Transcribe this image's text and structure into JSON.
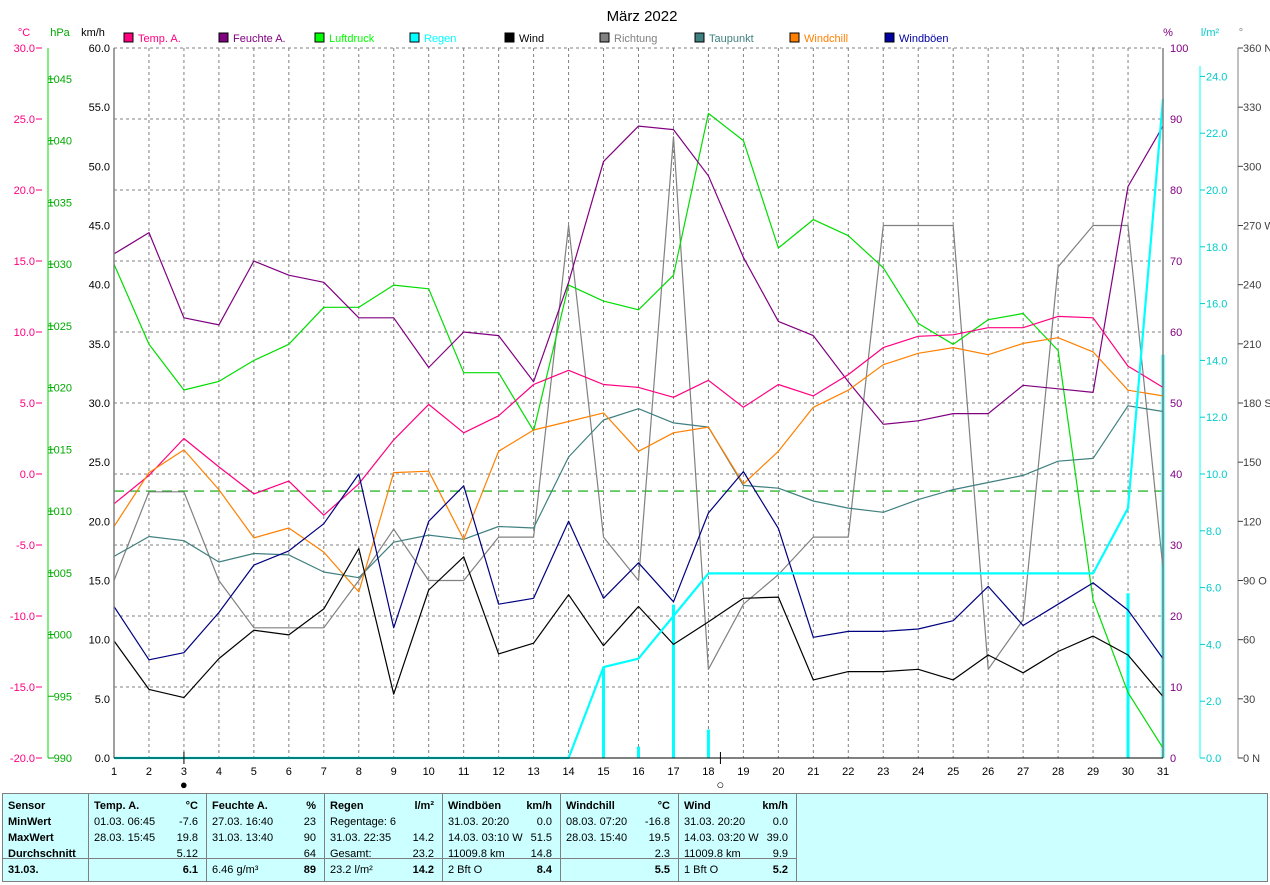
{
  "title": "März 2022",
  "colors": {
    "temp": "#ff0080",
    "humidity": "#800080",
    "pressure": "#00dd00",
    "rain": "#00ffff",
    "wind": "#000000",
    "direction": "#808080",
    "dewpoint": "#408080",
    "windchill": "#ff8000",
    "gusts": "#000080",
    "threshold": "#00aa00"
  },
  "legend": [
    {
      "label": "Temp. A.",
      "color": "#ff0080"
    },
    {
      "label": "Feuchte A.",
      "color": "#800080"
    },
    {
      "label": "Luftdruck",
      "color": "#00ff00"
    },
    {
      "label": "Regen",
      "color": "#00ffff"
    },
    {
      "label": "Wind",
      "color": "#000000"
    },
    {
      "label": "Richtung",
      "color": "#808080"
    },
    {
      "label": "Taupunkt",
      "color": "#408080"
    },
    {
      "label": "Windchill",
      "color": "#ff8000"
    },
    {
      "label": "Windböen",
      "color": "#0000a0"
    }
  ],
  "chart_data": {
    "type": "line",
    "title": "März 2022",
    "x": [
      1,
      2,
      3,
      4,
      5,
      6,
      7,
      8,
      9,
      10,
      11,
      12,
      13,
      14,
      15,
      16,
      17,
      18,
      19,
      20,
      21,
      22,
      23,
      24,
      25,
      26,
      27,
      28,
      29,
      30,
      31
    ],
    "xlim": [
      1,
      31
    ],
    "grid": true,
    "threshold_line": {
      "axis": "temp",
      "value": -1.2,
      "style": "dashed"
    },
    "axes": {
      "temp": {
        "unit": "°C",
        "range": [
          -20,
          30
        ],
        "ticks": [
          "30.0",
          "25.0",
          "20.0",
          "15.0",
          "10.0",
          "5.0",
          "0.0",
          "-5.0",
          "-10.0",
          "-15.0",
          "-20.0"
        ]
      },
      "pressure": {
        "unit": "hPa",
        "range": [
          990,
          1047.5
        ],
        "ticks": [
          "1045",
          "1040",
          "1035",
          "1030",
          "1025",
          "1020",
          "1015",
          "1010",
          "1005",
          "1000",
          "995",
          "990"
        ]
      },
      "wind": {
        "unit": "km/h",
        "range": [
          0,
          60
        ],
        "ticks": [
          "60.0",
          "55.0",
          "50.0",
          "45.0",
          "40.0",
          "35.0",
          "30.0",
          "25.0",
          "20.0",
          "15.0",
          "10.0",
          "5.0",
          "0.0"
        ]
      },
      "humidity": {
        "unit": "%",
        "range": [
          0,
          100
        ],
        "ticks": [
          "100",
          "90",
          "80",
          "70",
          "60",
          "50",
          "40",
          "30",
          "20",
          "10",
          "0"
        ]
      },
      "rain": {
        "unit": "l/m²",
        "range": [
          0,
          25
        ],
        "ticks": [
          "24.0",
          "22.0",
          "20.0",
          "18.0",
          "16.0",
          "14.0",
          "12.0",
          "10.0",
          "8.0",
          "6.0",
          "4.0",
          "2.0",
          "0.0"
        ]
      },
      "direction": {
        "unit": "°",
        "range": [
          0,
          360
        ],
        "ticks": [
          "360 N",
          "330",
          "300",
          "270 W",
          "240",
          "210",
          "180 S",
          "150",
          "120",
          "90 O",
          "60",
          "30",
          "0 N"
        ]
      }
    },
    "series": [
      {
        "name": "Temp. A.",
        "key": "temp",
        "axis": "temp",
        "values": [
          -2.1,
          -0.1,
          2.5,
          0.5,
          -1.4,
          -0.5,
          -2.9,
          -0.7,
          2.4,
          4.9,
          2.9,
          4.1,
          6.3,
          7.3,
          6.3,
          6.1,
          5.4,
          6.6,
          4.7,
          6.3,
          5.5,
          7.0,
          8.9,
          9.7,
          9.8,
          10.3,
          10.3,
          11.1,
          11.0,
          7.6,
          6.1
        ]
      },
      {
        "name": "Feuchte A.",
        "key": "humidity",
        "axis": "humidity",
        "values": [
          71,
          74,
          62,
          61,
          70,
          68,
          67,
          62,
          62,
          55,
          60,
          59.5,
          53,
          67,
          84,
          89,
          88.5,
          82,
          70.5,
          61.5,
          59.5,
          53,
          47,
          47.5,
          48.5,
          48.5,
          52.5,
          52,
          51.5,
          80.5,
          89
        ]
      },
      {
        "name": "Luftdruck",
        "key": "pressure",
        "axis": "pressure",
        "values": [
          1030.0,
          1023.5,
          1019.8,
          1020.5,
          1022.2,
          1023.5,
          1026.5,
          1026.5,
          1028.3,
          1028.0,
          1021.2,
          1021.2,
          1016.5,
          1028.3,
          1027.0,
          1026.3,
          1029.1,
          1042.2,
          1040.0,
          1031.3,
          1033.6,
          1032.3,
          1029.7,
          1025.2,
          1023.5,
          1025.5,
          1026.0,
          1023.0,
          1002.8,
          995.3,
          990.8
        ]
      },
      {
        "name": "Regen",
        "key": "rain",
        "axis": "rain",
        "values": [
          0,
          0,
          0,
          0,
          0,
          0,
          0,
          0,
          0,
          0,
          0,
          0,
          0,
          0,
          3.2,
          3.5,
          5.0,
          6.5,
          6.5,
          6.5,
          6.5,
          6.5,
          6.5,
          6.5,
          6.5,
          6.5,
          6.5,
          6.5,
          6.5,
          8.8,
          23.2
        ]
      },
      {
        "name": "Wind",
        "key": "wind",
        "axis": "wind",
        "values": [
          9.9,
          5.8,
          5.1,
          8.4,
          10.8,
          10.4,
          12.6,
          17.7,
          5.4,
          14.2,
          17.0,
          8.8,
          9.7,
          13.8,
          9.5,
          12.8,
          9.6,
          11.5,
          13.5,
          13.6,
          6.6,
          7.3,
          7.3,
          7.5,
          6.6,
          8.7,
          7.2,
          9.0,
          10.3,
          8.7,
          5.2
        ]
      },
      {
        "name": "Richtung",
        "key": "direction",
        "axis": "direction",
        "values": [
          90,
          135,
          135,
          90,
          66,
          66,
          66,
          90,
          116,
          90,
          90,
          112,
          112,
          270,
          112,
          90,
          315,
          45,
          78,
          93,
          112,
          112,
          270,
          270,
          270,
          45,
          70,
          249,
          270,
          270,
          96
        ]
      },
      {
        "name": "Taupunkt",
        "key": "dewpoint",
        "axis": "temp",
        "values": [
          -5.8,
          -4.4,
          -4.7,
          -6.2,
          -5.6,
          -5.7,
          -6.9,
          -7.3,
          -4.8,
          -4.3,
          -4.6,
          -3.7,
          -3.8,
          1.2,
          3.8,
          4.6,
          3.6,
          3.3,
          -0.8,
          -1.0,
          -1.9,
          -2.4,
          -2.7,
          -1.8,
          -1.1,
          -0.6,
          -0.1,
          0.9,
          1.1,
          4.8,
          4.4
        ]
      },
      {
        "name": "Windchill",
        "key": "windchill",
        "axis": "temp",
        "values": [
          -3.7,
          0.1,
          1.7,
          -1.1,
          -4.5,
          -3.8,
          -5.5,
          -8.3,
          0.1,
          0.2,
          -4.6,
          1.6,
          3.1,
          3.7,
          4.3,
          1.6,
          2.9,
          3.3,
          -0.7,
          1.6,
          4.7,
          5.9,
          7.7,
          8.5,
          8.9,
          8.4,
          9.2,
          9.6,
          8.6,
          5.9,
          5.5
        ]
      },
      {
        "name": "Windböen",
        "key": "gusts",
        "axis": "wind",
        "values": [
          12.8,
          8.3,
          8.9,
          12.3,
          16.3,
          17.5,
          19.8,
          24.0,
          11.0,
          20.0,
          23.0,
          13.0,
          13.5,
          20.0,
          13.5,
          16.5,
          13.2,
          20.7,
          24.2,
          19.4,
          10.2,
          10.7,
          10.7,
          10.9,
          11.6,
          14.5,
          11.2,
          13.0,
          14.8,
          12.5,
          8.4
        ]
      }
    ],
    "rain_daily_bars": [
      {
        "x": 15,
        "value": 3.2
      },
      {
        "x": 16,
        "value": 0.4
      },
      {
        "x": 17,
        "value": 5.4
      },
      {
        "x": 18,
        "value": 1.0
      },
      {
        "x": 30,
        "value": 5.8
      },
      {
        "x": 31,
        "value": 14.2
      }
    ],
    "moon_phases": [
      {
        "x": 3,
        "symbol": "●"
      },
      {
        "x": 18,
        "symbol": "○"
      }
    ]
  },
  "stats": {
    "sensor": {
      "header": "Sensor",
      "rows": [
        "MinWert",
        "MaxWert",
        "Durchschnitt",
        "31.03."
      ]
    },
    "panels": [
      {
        "name": "temp",
        "title": "Temp. A.",
        "unit": "°C",
        "rows": [
          [
            "01.03.  06:45",
            "-7.6"
          ],
          [
            "28.03.  15:45",
            "19.8"
          ],
          [
            "",
            "5.12"
          ],
          [
            "",
            "6.1"
          ]
        ]
      },
      {
        "name": "humidity",
        "title": "Feuchte A.",
        "unit": "%",
        "rows": [
          [
            "27.03.  16:40",
            "23"
          ],
          [
            "31.03.  13:40",
            "90"
          ],
          [
            "",
            "64"
          ],
          [
            "6.46 g/m³",
            "89"
          ]
        ]
      },
      {
        "name": "rain",
        "title": "Regen",
        "unit": "l/m²",
        "rows": [
          [
            "Regentage: 6",
            ""
          ],
          [
            "31.03.  22:35",
            "14.2"
          ],
          [
            "Gesamt:",
            "23.2"
          ],
          [
            "23.2 l/m²",
            "14.2"
          ]
        ]
      },
      {
        "name": "gusts",
        "title": "Windböen",
        "unit": "km/h",
        "rows": [
          [
            "31.03.  20:20",
            "0.0"
          ],
          [
            "14.03.  03:10  W",
            "51.5"
          ],
          [
            "11009.8 km",
            "14.8"
          ],
          [
            "2 Bft O",
            "8.4"
          ]
        ]
      },
      {
        "name": "windchill",
        "title": "Windchill",
        "unit": "°C",
        "rows": [
          [
            "08.03.  07:20",
            "-16.8"
          ],
          [
            "28.03.  15:40",
            "19.5"
          ],
          [
            "",
            "2.3"
          ],
          [
            "",
            "5.5"
          ]
        ]
      },
      {
        "name": "wind",
        "title": "Wind",
        "unit": "km/h",
        "rows": [
          [
            "31.03.  20:20",
            "0.0"
          ],
          [
            "14.03.  03:20  W",
            "39.0"
          ],
          [
            "11009.8 km",
            "9.9"
          ],
          [
            "1 Bft O",
            "5.2"
          ]
        ]
      }
    ]
  }
}
